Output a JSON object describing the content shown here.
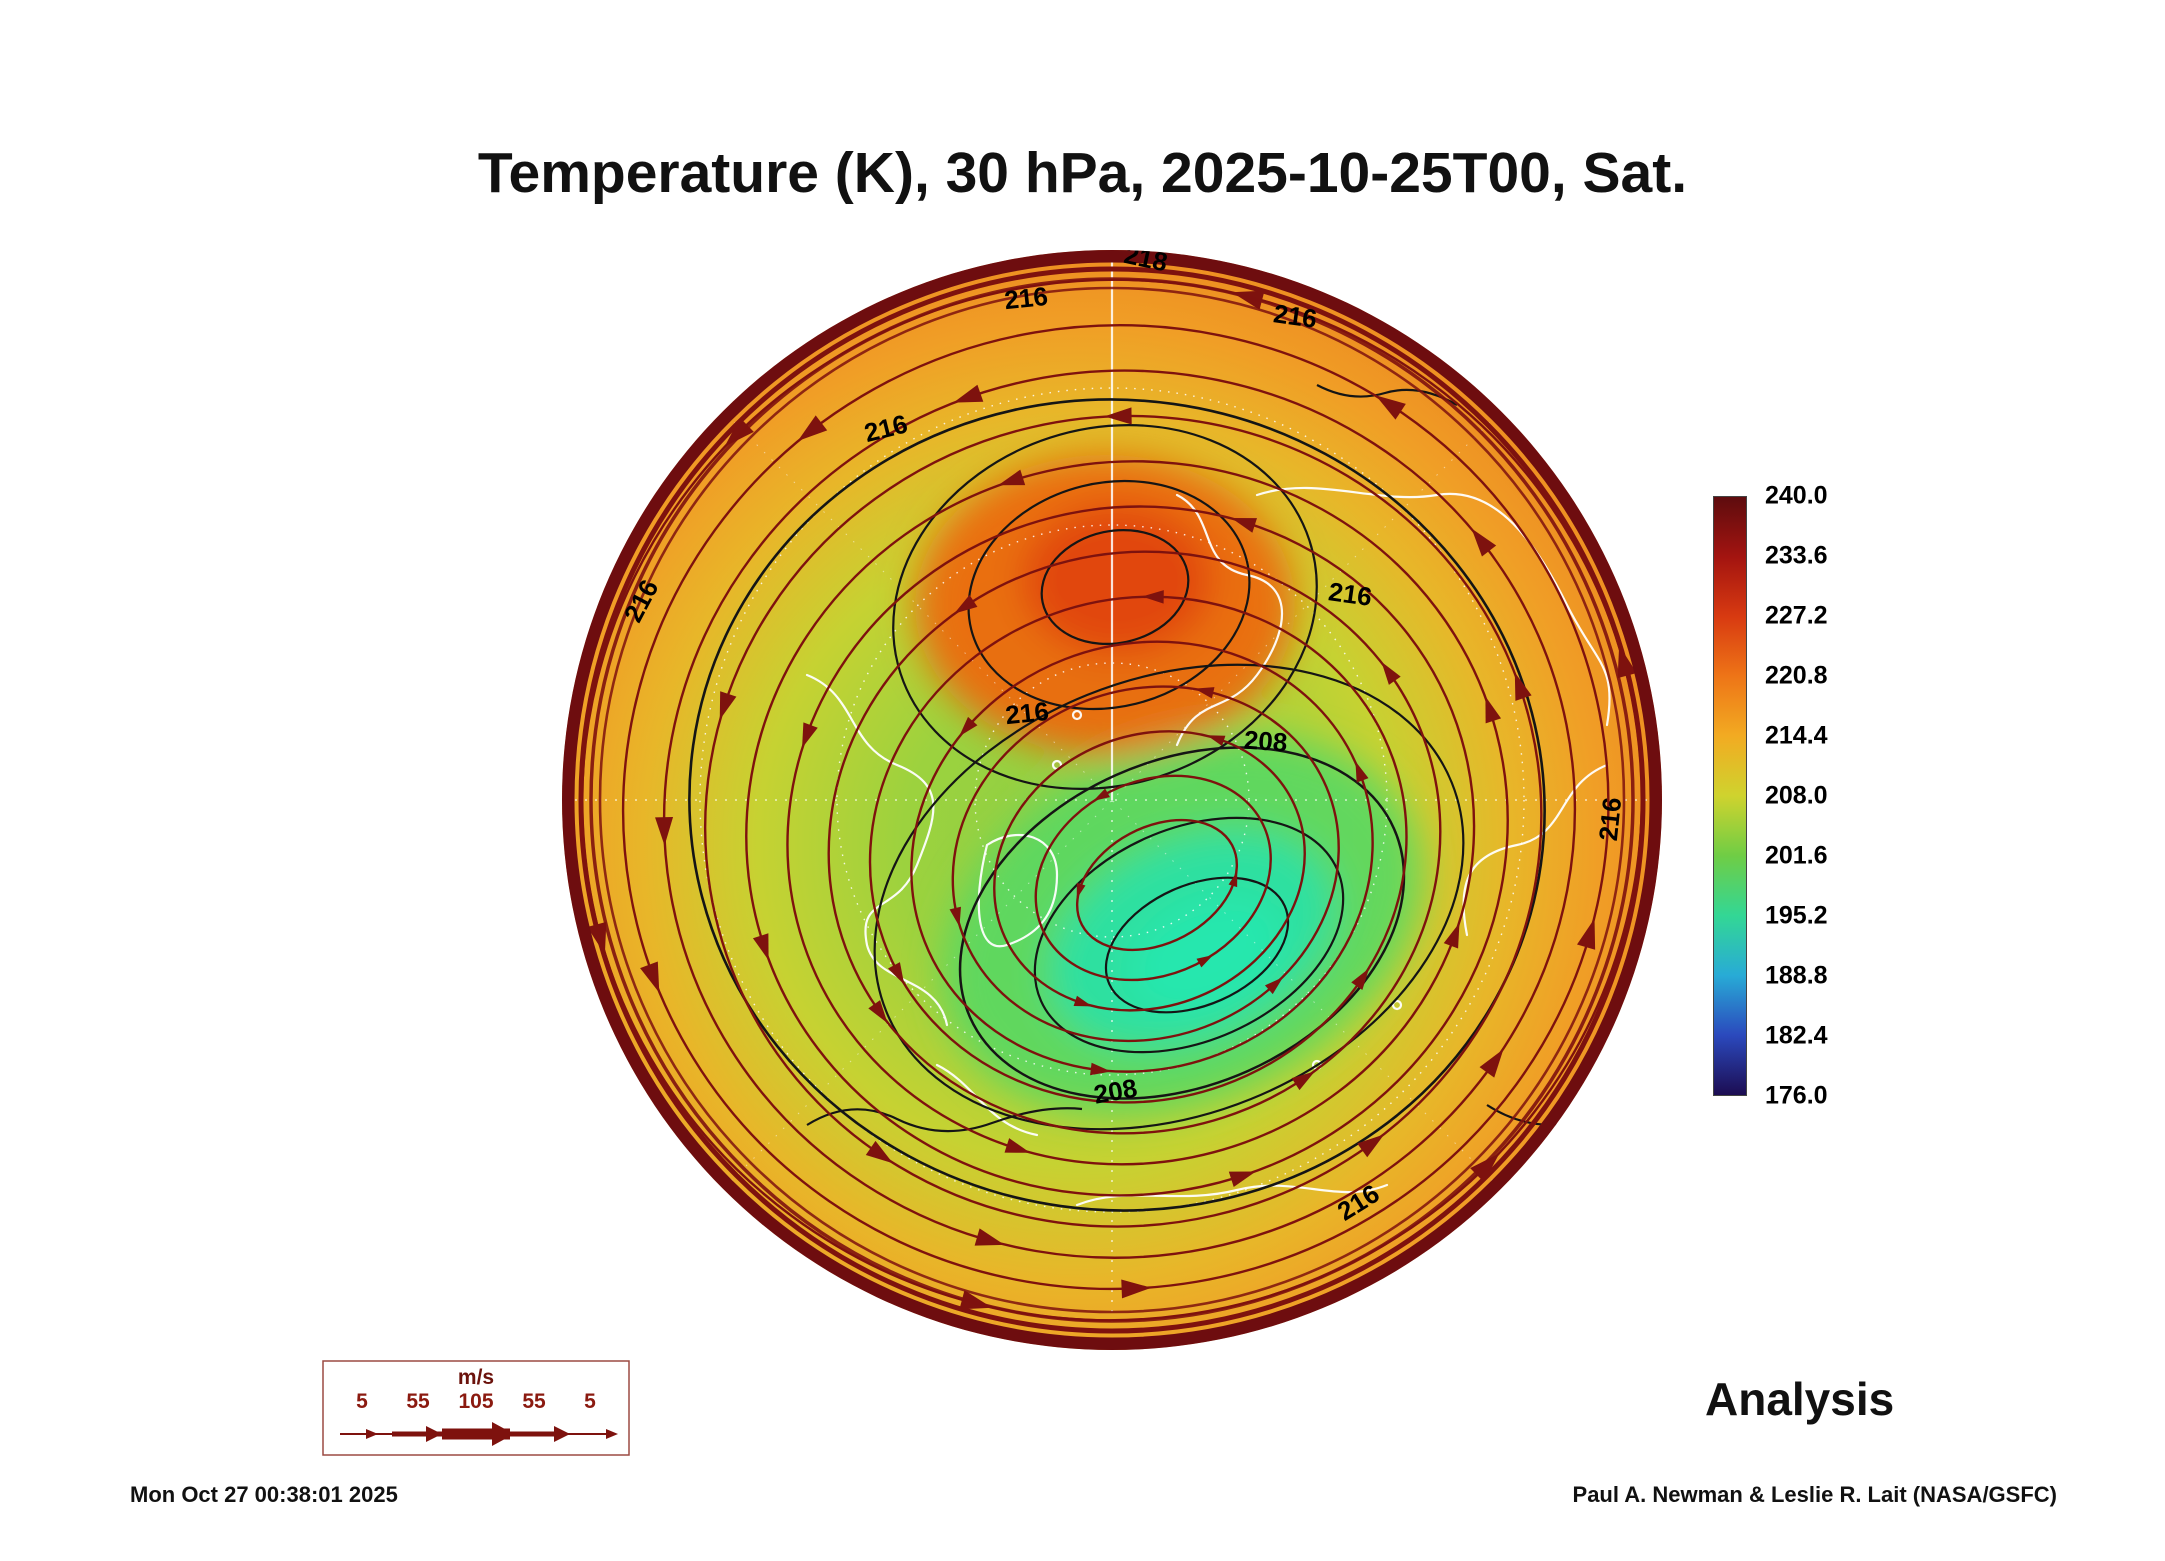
{
  "title": "Temperature (K), 30 hPa, 2025-10-25T00, Sat.",
  "analysis_label": "Analysis",
  "timestamp": "Mon Oct 27 00:38:01 2025",
  "credit": "Paul A. Newman & Leslie R. Lait (NASA/GSFC)",
  "colorbar": {
    "ticks": [
      "240.0",
      "233.6",
      "227.2",
      "220.8",
      "214.4",
      "208.0",
      "201.6",
      "195.2",
      "188.8",
      "182.4",
      "176.0"
    ],
    "stops": [
      "#5e0c0e",
      "#a31410",
      "#d83a11",
      "#ee7517",
      "#f2ab22",
      "#cfd32e",
      "#6fcd45",
      "#33d795",
      "#28abd6",
      "#2b49bd",
      "#1c0d52"
    ]
  },
  "map": {
    "contour_labels": [
      "218",
      "216",
      "216",
      "216",
      "216",
      "216",
      "216",
      "208",
      "216",
      "208",
      "216"
    ],
    "streamline_color": "#7e120e",
    "contour_color": "#151515",
    "coastline_color": "#ffffff"
  },
  "wind_legend": {
    "unit": "m/s",
    "ticks": [
      "5",
      "55",
      "105",
      "55",
      "5"
    ],
    "color": "#8b1a10"
  },
  "chart_data": {
    "type": "heatmap",
    "title": "Temperature (K), 30 hPa, 2025-10-25T00, Sat.",
    "variable": "Temperature",
    "units": "K",
    "level": "30 hPa",
    "valid_time": "2025-10-25T00",
    "projection": "north polar stereographic",
    "colorbar_range": [
      176.0,
      240.0
    ],
    "colorbar_step": 6.4,
    "colorbar_ticks": [
      240.0,
      233.6,
      227.2,
      220.8,
      214.4,
      208.0,
      201.6,
      195.2,
      188.8,
      182.4,
      176.0
    ],
    "contour_interval_labels": [
      208,
      216,
      218
    ],
    "overlay": "horizontal wind streamlines with arrowheads (dark red)",
    "wind_legend_speeds_ms": [
      5,
      55,
      105,
      55,
      5
    ],
    "analysis_type": "Analysis",
    "features": {
      "warm_region": "orange/red anomaly (~>222 K) near pole over Scandinavia/Barents sector",
      "cold_region": "green/cyan polar-vortex core (~<202 K) over the Siberia sector, 208 K contour closed around it",
      "edge": "warm yellow-orange belt (~214-222 K) around map rim with densely packed dark-red streamlines"
    }
  }
}
